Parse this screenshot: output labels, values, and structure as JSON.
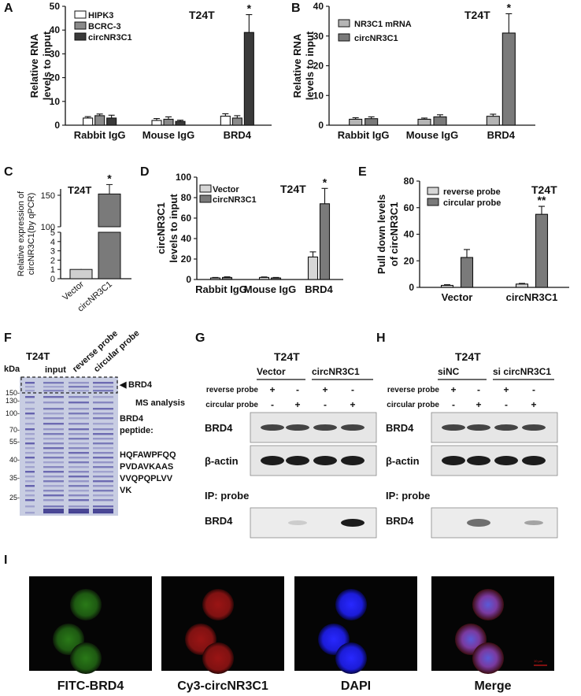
{
  "panels": {
    "A": "A",
    "B": "B",
    "C": "C",
    "D": "D",
    "E": "E",
    "F": "F",
    "G": "G",
    "H": "H",
    "I": "I"
  },
  "cell_line": "T24T",
  "palette": {
    "white": "#ffffff",
    "light": "#cfcfcf",
    "mid": "#8a8a8a",
    "dark": "#3a3a3a",
    "gel_bg": "#c8cde2",
    "gel_band": "#5a57a8",
    "blot_bg": "#e6e6e6",
    "band": "#1c1c1c"
  },
  "chart_data": [
    {
      "panel": "A",
      "type": "bar",
      "categories": [
        "Rabbit IgG",
        "Mouse IgG",
        "BRD4"
      ],
      "ylabel": "Relative RNA levels to input",
      "ylim": [
        0,
        50
      ],
      "yticks": [
        0,
        10,
        20,
        30,
        40,
        50
      ],
      "annotation": "T24T",
      "series": [
        {
          "name": "HIPK3",
          "values": [
            3.0,
            2.0,
            3.8
          ],
          "err": [
            0.6,
            0.8,
            1.0
          ],
          "color": "#ffffff"
        },
        {
          "name": "BCRC-3",
          "values": [
            4.0,
            2.5,
            3.0
          ],
          "err": [
            0.7,
            1.0,
            1.0
          ],
          "color": "#8a8a8a"
        },
        {
          "name": "circNR3C1",
          "values": [
            3.0,
            1.6,
            39.0
          ],
          "err": [
            1.2,
            0.5,
            7.5
          ],
          "color": "#3a3a3a"
        }
      ],
      "significance": [
        {
          "category": 2,
          "series": 2,
          "label": "*"
        }
      ]
    },
    {
      "panel": "B",
      "type": "bar",
      "categories": [
        "Rabbit IgG",
        "Mouse IgG",
        "BRD4"
      ],
      "ylabel": "Relative RNA levels to input",
      "ylim": [
        0,
        40
      ],
      "yticks": [
        0,
        10,
        20,
        30,
        40
      ],
      "annotation": "T24T",
      "series": [
        {
          "name": "NR3C1 mRNA",
          "values": [
            2.0,
            2.0,
            3.0
          ],
          "err": [
            0.5,
            0.4,
            0.7
          ],
          "color": "#b5b5b5"
        },
        {
          "name": "circNR3C1",
          "values": [
            2.2,
            2.8,
            31.0
          ],
          "err": [
            0.6,
            0.7,
            6.5
          ],
          "color": "#7a7a7a"
        }
      ],
      "significance": [
        {
          "category": 2,
          "series": 1,
          "label": "*"
        }
      ]
    },
    {
      "panel": "C",
      "type": "bar",
      "categories": [
        "Vector",
        "circNR3C1"
      ],
      "ylabel": "Relative expression of circNR3C1(by qPCR)",
      "axis_break": true,
      "ylim_lower": [
        0,
        5
      ],
      "yticks_lower": [
        0,
        1,
        2,
        3,
        4,
        5
      ],
      "ylim_upper": [
        100,
        150
      ],
      "yticks_upper": [
        100,
        150
      ],
      "annotation": "T24T",
      "series": [
        {
          "name": "",
          "values": [
            1.0,
            152
          ],
          "err": [
            0.05,
            15
          ],
          "colors": [
            "#cfcfcf",
            "#7a7a7a"
          ]
        }
      ],
      "significance": [
        {
          "category": 1,
          "series": 0,
          "label": "*"
        }
      ]
    },
    {
      "panel": "D",
      "type": "bar",
      "categories": [
        "Rabbit IgG",
        "Mouse IgG",
        "BRD4"
      ],
      "ylabel": "circNR3C1 levels to input",
      "ylim": [
        0,
        100
      ],
      "yticks": [
        0,
        20,
        40,
        60,
        80,
        100
      ],
      "annotation": "T24T",
      "series": [
        {
          "name": "Vector",
          "values": [
            1.5,
            2.0,
            22.0
          ],
          "err": [
            0.5,
            0.5,
            5.0
          ],
          "color": "#d6d6d6"
        },
        {
          "name": "circNR3C1",
          "values": [
            2.0,
            1.5,
            74.0
          ],
          "err": [
            0.6,
            0.5,
            15.0
          ],
          "color": "#7a7a7a"
        }
      ],
      "significance": [
        {
          "category": 2,
          "series": 1,
          "label": "*"
        }
      ]
    },
    {
      "panel": "E",
      "type": "bar",
      "categories": [
        "Vector",
        "circNR3C1"
      ],
      "ylabel": "Pull down levels of circNR3C1",
      "ylim": [
        0,
        80
      ],
      "yticks": [
        0,
        20,
        40,
        60,
        80
      ],
      "annotation": "T24T",
      "series": [
        {
          "name": "reverse probe",
          "values": [
            1.5,
            2.5
          ],
          "err": [
            0.5,
            0.5
          ],
          "color": "#d6d6d6"
        },
        {
          "name": "circular probe",
          "values": [
            22.5,
            55.0
          ],
          "err": [
            6.0,
            6.0
          ],
          "color": "#7a7a7a"
        }
      ],
      "significance": [
        {
          "category": 1,
          "series": 1,
          "label": "**"
        }
      ]
    }
  ],
  "gel_F": {
    "title": "T24T",
    "unit": "kDa",
    "lanes": [
      "input",
      "reverse probe",
      "circular probe"
    ],
    "markers": [
      "150-",
      "130-",
      "100-",
      "70-",
      "55-",
      "40-",
      "35-",
      "25-"
    ],
    "arrow_label": "BRD4",
    "ms_label": "MS analysis",
    "peptide_title": [
      "BRD4",
      "peptide:"
    ],
    "peptide_lines": [
      "HQFAWPFQQ",
      "PVDAVKAAS",
      "VVQPQPLVV",
      "VK"
    ]
  },
  "blot_G": {
    "title": "T24T",
    "groups": [
      "Vector",
      "circNR3C1"
    ],
    "rows": [
      {
        "label": "reverse probe",
        "signs": [
          "+",
          "-",
          "+",
          "-"
        ]
      },
      {
        "label": "circular probe",
        "signs": [
          "-",
          "+",
          "-",
          "+"
        ]
      }
    ],
    "bands": [
      {
        "label": "BRD4",
        "intensity": [
          0.8,
          0.8,
          0.8,
          0.8
        ]
      },
      {
        "label": "β-actin",
        "intensity": [
          1.0,
          1.0,
          1.0,
          1.0
        ]
      }
    ],
    "ip_label": "IP: probe",
    "ip_band": {
      "label": "BRD4",
      "intensity": [
        0.0,
        0.15,
        0.0,
        1.0
      ]
    }
  },
  "blot_H": {
    "title": "T24T",
    "groups": [
      "siNC",
      "si circNR3C1"
    ],
    "rows": [
      {
        "label": "reverse probe",
        "signs": [
          "+",
          "-",
          "+",
          "-"
        ]
      },
      {
        "label": "circular probe",
        "signs": [
          "-",
          "+",
          "-",
          "+"
        ]
      }
    ],
    "bands": [
      {
        "label": "BRD4",
        "intensity": [
          0.8,
          0.8,
          0.8,
          0.8
        ]
      },
      {
        "label": "β-actin",
        "intensity": [
          1.0,
          1.0,
          1.0,
          1.0
        ]
      }
    ],
    "ip_label": "IP: probe",
    "ip_band": {
      "label": "BRD4",
      "intensity": [
        0.0,
        0.6,
        0.0,
        0.35
      ]
    }
  },
  "micro_I": {
    "images": [
      {
        "label": "FITC-BRD4",
        "color": "green"
      },
      {
        "label": "Cy3-circNR3C1",
        "color": "red"
      },
      {
        "label": "DAPI",
        "color": "blue"
      },
      {
        "label": "Merge",
        "color": "merge"
      }
    ],
    "scale_bar": "10 μm"
  }
}
